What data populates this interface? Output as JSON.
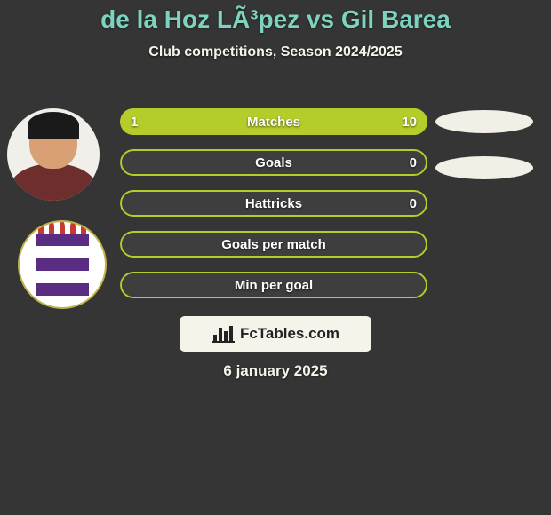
{
  "colors": {
    "background": "#353535",
    "title": "#7dd3c0",
    "subtitle": "#f6f4ea",
    "bar_fill": "#b6cc2a",
    "bar_empty": "#3e3e3e",
    "bar_border": "#b6cc2a",
    "bar_text": "#ffffff",
    "ellipse": "#f1efe6",
    "footer_bg": "#f6f4ea",
    "footer_text": "#232323",
    "date_text": "#f6f4ea",
    "avatar_skin": "#d8a074",
    "avatar_hair": "#1a1a1a",
    "avatar_shirt": "#6f2e2e",
    "crest_purple": "#5a2d82",
    "crest_white": "#ffffff",
    "crest_flame": "#c63b2f",
    "crest_gold": "#c2b24a"
  },
  "title": {
    "text": "de la Hoz LÃ³pez vs Gil Barea",
    "fontsize": 28
  },
  "subtitle": {
    "text": "Club competitions, Season 2024/2025",
    "fontsize": 16
  },
  "bars": [
    {
      "label": "Matches",
      "left_val": "1",
      "right_val": "10",
      "left_pct": 9,
      "right_pct": 91,
      "show_vals": true,
      "show_ellipse": true
    },
    {
      "label": "Goals",
      "left_val": "",
      "right_val": "0",
      "left_pct": 0,
      "right_pct": 0,
      "show_vals": true,
      "show_ellipse": true
    },
    {
      "label": "Hattricks",
      "left_val": "",
      "right_val": "0",
      "left_pct": 0,
      "right_pct": 0,
      "show_vals": true,
      "show_ellipse": false
    },
    {
      "label": "Goals per match",
      "left_val": "",
      "right_val": "",
      "left_pct": 0,
      "right_pct": 0,
      "show_vals": false,
      "show_ellipse": false
    },
    {
      "label": "Min per goal",
      "left_val": "",
      "right_val": "",
      "left_pct": 0,
      "right_pct": 0,
      "show_vals": false,
      "show_ellipse": false
    }
  ],
  "bar_style": {
    "height": 30,
    "gap": 16,
    "border_width": 2,
    "label_fontsize": 15,
    "value_fontsize": 15
  },
  "footer": {
    "brand": "FcTables.com",
    "date": "6 january 2025",
    "date_fontsize": 17,
    "brand_fontsize": 17
  }
}
